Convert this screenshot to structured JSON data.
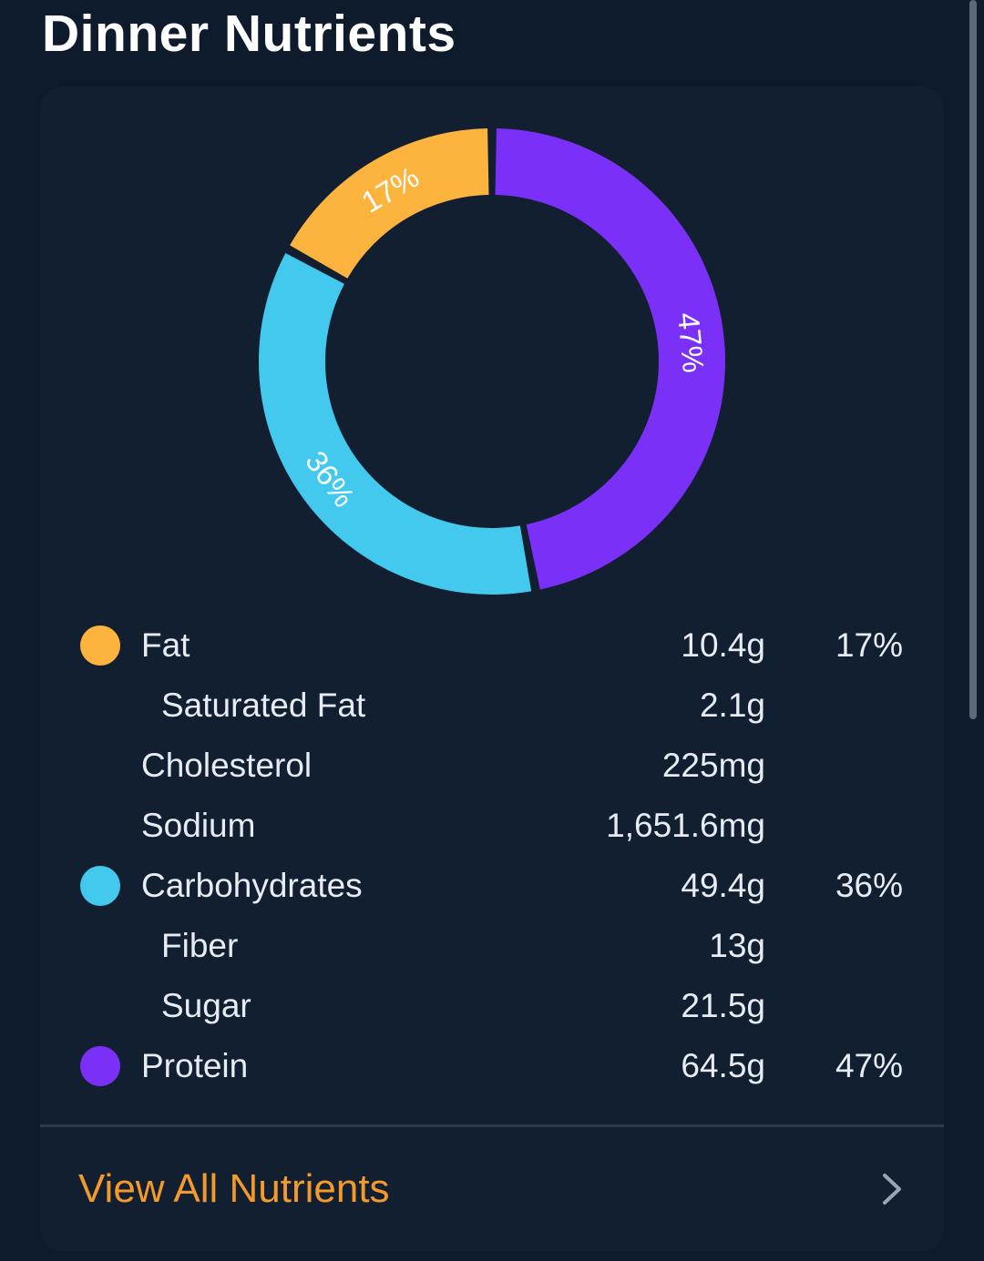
{
  "page": {
    "title": "Dinner Nutrients"
  },
  "chart_data": {
    "type": "pie",
    "style": "donut",
    "slices": [
      {
        "name": "Protein",
        "value": 47,
        "label": "47%",
        "color": "#7b30f8"
      },
      {
        "name": "Carbohydrates",
        "value": 36,
        "label": "36%",
        "color": "#43c8ee"
      },
      {
        "name": "Fat",
        "value": 17,
        "label": "17%",
        "color": "#fdb43f"
      }
    ]
  },
  "nutrients": [
    {
      "label": "Fat",
      "amount": "10.4g",
      "percent": "17%",
      "color": "#fdb43f",
      "sub": false
    },
    {
      "label": "Saturated Fat",
      "amount": "2.1g",
      "percent": "",
      "color": "",
      "sub": true
    },
    {
      "label": "Cholesterol",
      "amount": "225mg",
      "percent": "",
      "color": "",
      "sub": false
    },
    {
      "label": "Sodium",
      "amount": "1,651.6mg",
      "percent": "",
      "color": "",
      "sub": false
    },
    {
      "label": "Carbohydrates",
      "amount": "49.4g",
      "percent": "36%",
      "color": "#43c8ee",
      "sub": false
    },
    {
      "label": "Fiber",
      "amount": "13g",
      "percent": "",
      "color": "",
      "sub": true
    },
    {
      "label": "Sugar",
      "amount": "21.5g",
      "percent": "",
      "color": "",
      "sub": true
    },
    {
      "label": "Protein",
      "amount": "64.5g",
      "percent": "47%",
      "color": "#7b30f8",
      "sub": false
    }
  ],
  "footer": {
    "view_all_label": "View All Nutrients",
    "chevron_icon": "chevron-right-icon"
  },
  "colors": {
    "background": "#0e1b2c",
    "card": "#121f31",
    "accent": "#f39a2a"
  }
}
